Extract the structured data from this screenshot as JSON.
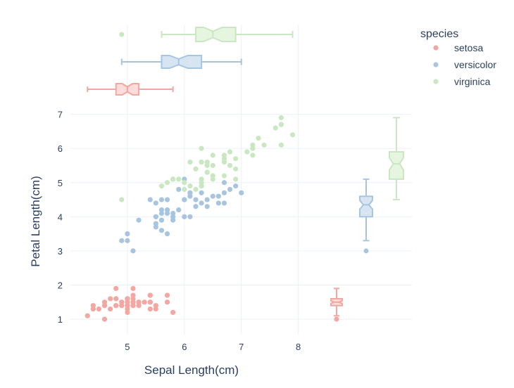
{
  "chart_data": {
    "type": "scatter",
    "xlabel": "Sepal Length(cm)",
    "ylabel": "Petal Length(cm)",
    "xlim": [
      4.0,
      8.35
    ],
    "ylim": [
      0.55,
      7.3
    ],
    "xticks": [
      5,
      6,
      7,
      8
    ],
    "yticks": [
      1,
      2,
      3,
      4,
      5,
      6,
      7
    ],
    "marginal_x": "box (notched) per species along Sepal Length",
    "marginal_y": "box (notched) per species along Petal Length",
    "legend": {
      "title": "species",
      "position": "top-right"
    },
    "series": [
      {
        "name": "setosa",
        "color": "#f4a6a1",
        "fill": "#fddcd9",
        "x": [
          5.1,
          4.9,
          4.7,
          4.6,
          5.0,
          5.4,
          4.6,
          5.0,
          4.4,
          4.9,
          5.4,
          4.8,
          4.8,
          4.3,
          5.8,
          5.7,
          5.4,
          5.1,
          5.7,
          5.1,
          5.4,
          5.1,
          4.6,
          5.1,
          4.8,
          5.0,
          5.0,
          5.2,
          5.2,
          4.7,
          4.8,
          5.4,
          5.2,
          5.5,
          4.9,
          5.0,
          5.5,
          4.9,
          4.4,
          5.1,
          5.0,
          4.5,
          4.4,
          5.0,
          5.1,
          4.8,
          5.1,
          4.6,
          5.3,
          5.0
        ],
        "y": [
          1.4,
          1.4,
          1.3,
          1.5,
          1.4,
          1.7,
          1.4,
          1.5,
          1.4,
          1.5,
          1.5,
          1.6,
          1.4,
          1.1,
          1.2,
          1.5,
          1.3,
          1.4,
          1.7,
          1.5,
          1.7,
          1.5,
          1.0,
          1.7,
          1.9,
          1.6,
          1.6,
          1.5,
          1.4,
          1.6,
          1.6,
          1.5,
          1.5,
          1.4,
          1.5,
          1.2,
          1.3,
          1.4,
          1.3,
          1.5,
          1.3,
          1.3,
          1.3,
          1.6,
          1.9,
          1.4,
          1.6,
          1.4,
          1.5,
          1.4
        ],
        "box_x": {
          "min": 4.3,
          "q1": 4.8,
          "median": 5.0,
          "q3": 5.2,
          "max": 5.8,
          "notch_low": 4.91,
          "notch_high": 5.09,
          "outliers": []
        },
        "box_y": {
          "min": 1.1,
          "q1": 1.4,
          "median": 1.5,
          "q3": 1.6,
          "max": 1.9,
          "notch_low": 1.46,
          "notch_high": 1.54,
          "outliers": [
            1.0
          ]
        }
      },
      {
        "name": "versicolor",
        "color": "#a8c5e0",
        "fill": "#d7e5f2",
        "x": [
          7.0,
          6.4,
          6.9,
          5.5,
          6.5,
          5.7,
          6.3,
          4.9,
          6.6,
          5.2,
          5.0,
          5.9,
          6.0,
          6.1,
          5.6,
          6.7,
          5.6,
          5.8,
          6.2,
          5.6,
          5.9,
          6.1,
          6.3,
          6.1,
          6.4,
          6.6,
          6.8,
          6.7,
          6.0,
          5.7,
          5.5,
          5.5,
          5.8,
          6.0,
          5.4,
          6.0,
          6.7,
          6.3,
          5.6,
          5.5,
          5.5,
          6.1,
          5.8,
          5.0,
          5.6,
          5.7,
          5.7,
          6.2,
          5.1,
          5.7
        ],
        "y": [
          4.7,
          4.5,
          4.9,
          4.0,
          4.6,
          4.5,
          4.7,
          3.3,
          4.6,
          3.9,
          3.5,
          4.2,
          4.0,
          4.7,
          3.6,
          4.4,
          4.5,
          4.1,
          4.5,
          3.9,
          4.8,
          4.0,
          4.9,
          4.7,
          4.3,
          4.4,
          4.8,
          5.0,
          4.5,
          3.5,
          3.8,
          3.7,
          3.9,
          5.1,
          4.5,
          4.5,
          4.7,
          4.4,
          4.1,
          4.0,
          4.4,
          4.6,
          4.0,
          3.3,
          4.2,
          4.2,
          4.2,
          4.3,
          3.0,
          4.1
        ],
        "box_x": {
          "min": 4.9,
          "q1": 5.6,
          "median": 5.9,
          "q3": 6.3,
          "max": 7.0,
          "notch_low": 5.74,
          "notch_high": 6.06,
          "outliers": []
        },
        "box_y": {
          "min": 3.3,
          "q1": 4.0,
          "median": 4.35,
          "q3": 4.6,
          "max": 5.1,
          "notch_low": 4.22,
          "notch_high": 4.48,
          "outliers": [
            3.0
          ]
        }
      },
      {
        "name": "virginica",
        "color": "#c9e8c1",
        "fill": "#e5f5e0",
        "x": [
          6.3,
          5.8,
          7.1,
          6.3,
          6.5,
          7.6,
          4.9,
          7.3,
          6.7,
          7.2,
          6.5,
          6.4,
          6.8,
          5.7,
          5.8,
          6.4,
          6.5,
          7.7,
          7.7,
          6.0,
          6.9,
          5.6,
          7.7,
          6.3,
          6.7,
          7.2,
          6.2,
          6.1,
          6.4,
          7.2,
          7.4,
          7.9,
          6.4,
          6.3,
          6.1,
          7.7,
          6.3,
          6.4,
          6.0,
          6.9,
          6.7,
          6.9,
          5.8,
          6.8,
          6.7,
          6.7,
          6.3,
          6.5,
          6.2,
          5.9
        ],
        "y": [
          6.0,
          5.1,
          5.9,
          5.6,
          5.8,
          6.6,
          4.5,
          6.3,
          5.8,
          6.1,
          5.1,
          5.3,
          5.5,
          5.0,
          5.1,
          5.3,
          5.5,
          6.7,
          6.9,
          5.0,
          5.7,
          4.9,
          6.7,
          4.9,
          5.7,
          6.0,
          4.8,
          4.9,
          5.6,
          5.8,
          6.1,
          6.4,
          5.6,
          5.1,
          5.6,
          6.1,
          5.6,
          5.5,
          4.8,
          5.4,
          5.6,
          5.1,
          5.1,
          5.9,
          5.7,
          5.2,
          5.0,
          5.2,
          5.4,
          5.1
        ],
        "box_x": {
          "min": 5.6,
          "q1": 6.2,
          "median": 6.5,
          "q3": 6.9,
          "max": 7.9,
          "notch_low": 6.34,
          "notch_high": 6.66,
          "outliers": [
            4.9
          ]
        },
        "box_y": {
          "min": 4.5,
          "q1": 5.1,
          "median": 5.55,
          "q3": 5.9,
          "max": 6.9,
          "notch_low": 5.37,
          "notch_high": 5.73,
          "outliers": []
        }
      }
    ]
  }
}
